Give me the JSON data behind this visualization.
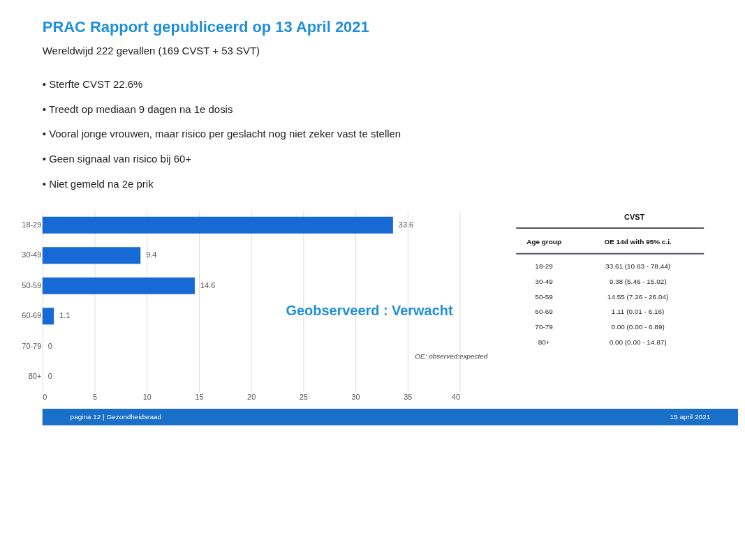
{
  "chart_data": {
    "type": "bar",
    "orientation": "horizontal",
    "title": "PRAC Rapport gepubliceerd op 13 April 2021",
    "subtitle": "Wereldwijd 222 gevallen (169 CVST + 53 SVT)",
    "categories": [
      "18-29",
      "30-49",
      "50-59",
      "60-69",
      "70-79",
      "80+"
    ],
    "values": [
      33.6,
      9.4,
      14.6,
      1.1,
      0,
      0
    ],
    "color": "#1769d6",
    "xlim": [
      0,
      40
    ],
    "xticks": [
      0,
      5,
      10,
      15,
      20,
      25,
      30,
      35,
      40
    ],
    "grid": "x",
    "data_labels": true,
    "annotations": [
      "• Sterfte CVST 22.6%",
      "• Treedt op mediaan 9 dagen na 1e dosis",
      "• Vooral jonge vrouwen, maar risico per geslacht nog niet zeker vast te stellen",
      "• Geen signaal van risico bij 60+",
      "• Niet gemeld na 2e prik",
      "Geobserveerd : Verwacht",
      "OE: observed:expected",
      "CVST",
      "Age group",
      "OE 14d with 95% c.i.",
      "18-29",
      "33.61 (10.83 - 78.44)",
      "30-49",
      "9.38 (5.46 - 15.02)",
      "50-59",
      "14.55 (7.26 - 26.04)",
      "60-69",
      "1.11 (0.01 - 6.16)",
      "70-79",
      "0.00 (0.00 - 6.89)",
      "80+",
      "0.00 (0.00 - 14.87)",
      "pagina 12 | Gezondheidsraad",
      "15 april 2021"
    ]
  }
}
